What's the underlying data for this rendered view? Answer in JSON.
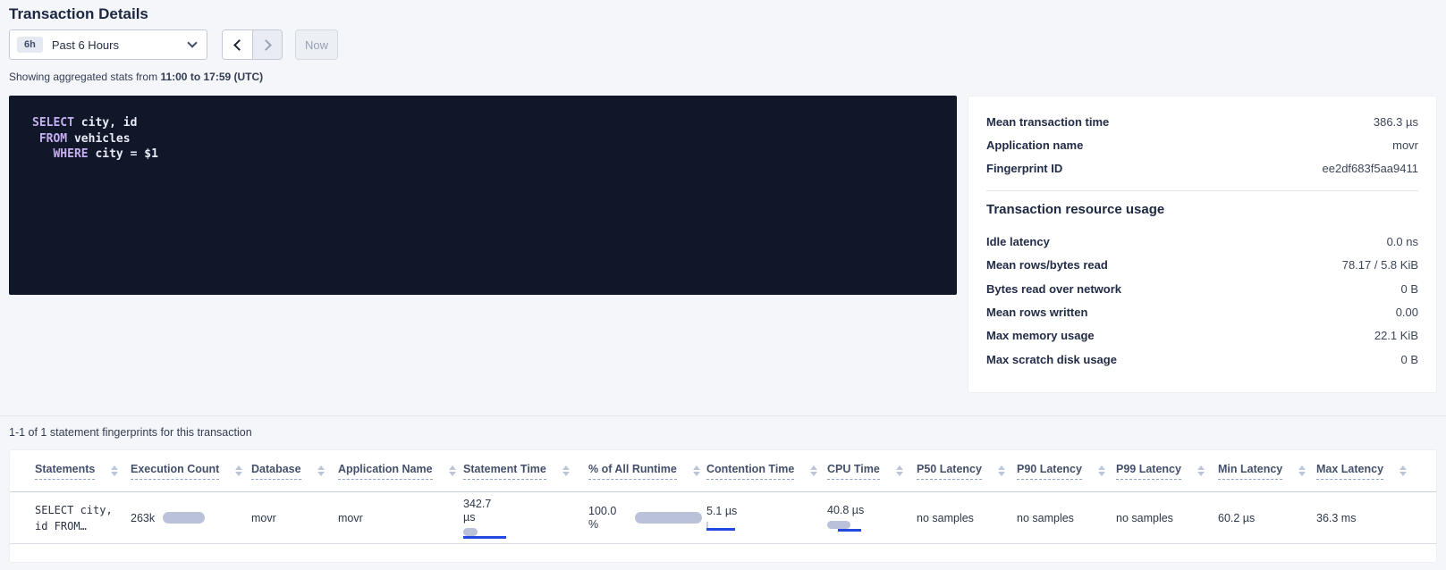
{
  "colors": {
    "accent_blue": "#2249e0",
    "bar_gray": "#b9c2d8",
    "sql_bg": "#0f1729",
    "sql_keyword": "#c5aff0",
    "sql_text": "#e9ebf5"
  },
  "header": {
    "title": "Transaction Details"
  },
  "time_picker": {
    "badge": "6h",
    "selected": "Past 6 Hours",
    "now_label": "Now"
  },
  "stats_note": {
    "prefix": "Showing aggregated stats from",
    "range": "11:00 to 17:59 (UTC)"
  },
  "sql": {
    "lines": [
      [
        {
          "text": "SELECT",
          "kw": true
        },
        {
          "text": " city, id",
          "kw": false
        }
      ],
      [
        {
          "text": " ",
          "kw": false
        },
        {
          "text": "FROM",
          "kw": true
        },
        {
          "text": " vehicles",
          "kw": false
        }
      ],
      [
        {
          "text": "   ",
          "kw": false
        },
        {
          "text": "WHERE",
          "kw": true
        },
        {
          "text": " city = $1",
          "kw": false
        }
      ]
    ]
  },
  "summary_panel": {
    "rows": [
      {
        "label": "Mean transaction time",
        "value": "386.3 µs"
      },
      {
        "label": "Application name",
        "value": "movr"
      },
      {
        "label": "Fingerprint ID",
        "value": "ee2df683f5aa9411"
      }
    ],
    "section_title": "Transaction resource usage",
    "resource_rows": [
      {
        "label": "Idle latency",
        "value": "0.0 ns"
      },
      {
        "label": "Mean rows/bytes read",
        "value": "78.17 / 5.8 KiB"
      },
      {
        "label": "Bytes read over network",
        "value": "0 B"
      },
      {
        "label": "Mean rows written",
        "value": "0.00"
      },
      {
        "label": "Max memory usage",
        "value": "22.1 KiB"
      },
      {
        "label": "Max scratch disk usage",
        "value": "0 B"
      }
    ]
  },
  "statements_table": {
    "caption": "1-1 of 1 statement fingerprints for this transaction",
    "columns": [
      "Statements",
      "Execution Count",
      "Database",
      "Application Name",
      "Statement Time",
      "% of All Runtime",
      "Contention Time",
      "CPU Time",
      "P50 Latency",
      "P90 Latency",
      "P99 Latency",
      "Min Latency",
      "Max Latency"
    ],
    "row": {
      "statement": "SELECT city, id FROM…",
      "execution_count": "263k",
      "database": "movr",
      "application_name": "movr",
      "statement_time": "342.7 µs",
      "pct_runtime": "100.0 %",
      "contention_time": "5.1 µs",
      "cpu_time": "40.8 µs",
      "p50_latency": "no samples",
      "p90_latency": "no samples",
      "p99_latency": "no samples",
      "min_latency": "60.2 µs",
      "max_latency": "36.3 ms"
    }
  }
}
